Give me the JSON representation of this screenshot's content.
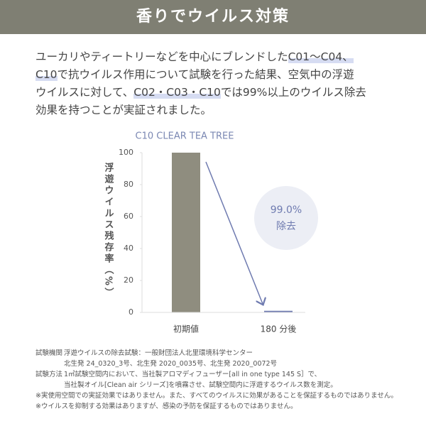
{
  "header": {
    "title": "香りでウイルス対策"
  },
  "paragraph": {
    "lines": [
      [
        {
          "text": "ユーカリやティートリーなどを中心にブレンドした",
          "highlight": false
        },
        {
          "text": "C01〜C04、",
          "highlight": true
        }
      ],
      [
        {
          "text": "C10",
          "highlight": true
        },
        {
          "text": "で抗ウイルス作用について試験を行った結果、空気中の浮遊",
          "highlight": false
        }
      ],
      [
        {
          "text": "ウイルスに対して、",
          "highlight": false
        },
        {
          "text": "C02・C03・C10",
          "highlight": true
        },
        {
          "text": "では99%以上のウイルス除去",
          "highlight": false
        }
      ],
      [
        {
          "text": "効果を持つことが実証されました。",
          "highlight": false
        }
      ]
    ]
  },
  "chart_data": {
    "type": "bar",
    "title": "C10 CLEAR TEA TREE",
    "y_label": "浮遊ウイルス残存率（%）",
    "categories": [
      "初期値",
      "180 分後"
    ],
    "values": [
      100,
      1
    ],
    "colors": [
      "#8f8d7f",
      "#6f7bb0"
    ],
    "ylim": [
      0,
      100
    ],
    "yticks": [
      0,
      20,
      40,
      60,
      80,
      100
    ],
    "annotation": {
      "value_text": "99.0%",
      "label": "除去"
    }
  },
  "footnotes": {
    "rows": [
      {
        "label": "試験機関",
        "lines": [
          "浮遊ウイルスの除去試験：一般財団法人北里環境科学センター",
          "北生発 24_0320_3号、北生発 2020_0035号、北生発 2020_0072号"
        ]
      },
      {
        "label": "試験方法",
        "lines": [
          "1㎥試験空間内において、当社製アロマディフューザー[all in one type 145 S］で、",
          "当社製オイル[Clean air シリーズ]を噴霧させ、試験空間内に浮遊するウイルス数を測定。"
        ]
      }
    ],
    "notes": [
      "※実使用空間での実証効果ではありません。また、すべてのウイルスに効果があることを保証するものではありません。",
      "※ウイルスを抑制する効果はありますが、感染の予防を保証するものではありません。"
    ]
  }
}
